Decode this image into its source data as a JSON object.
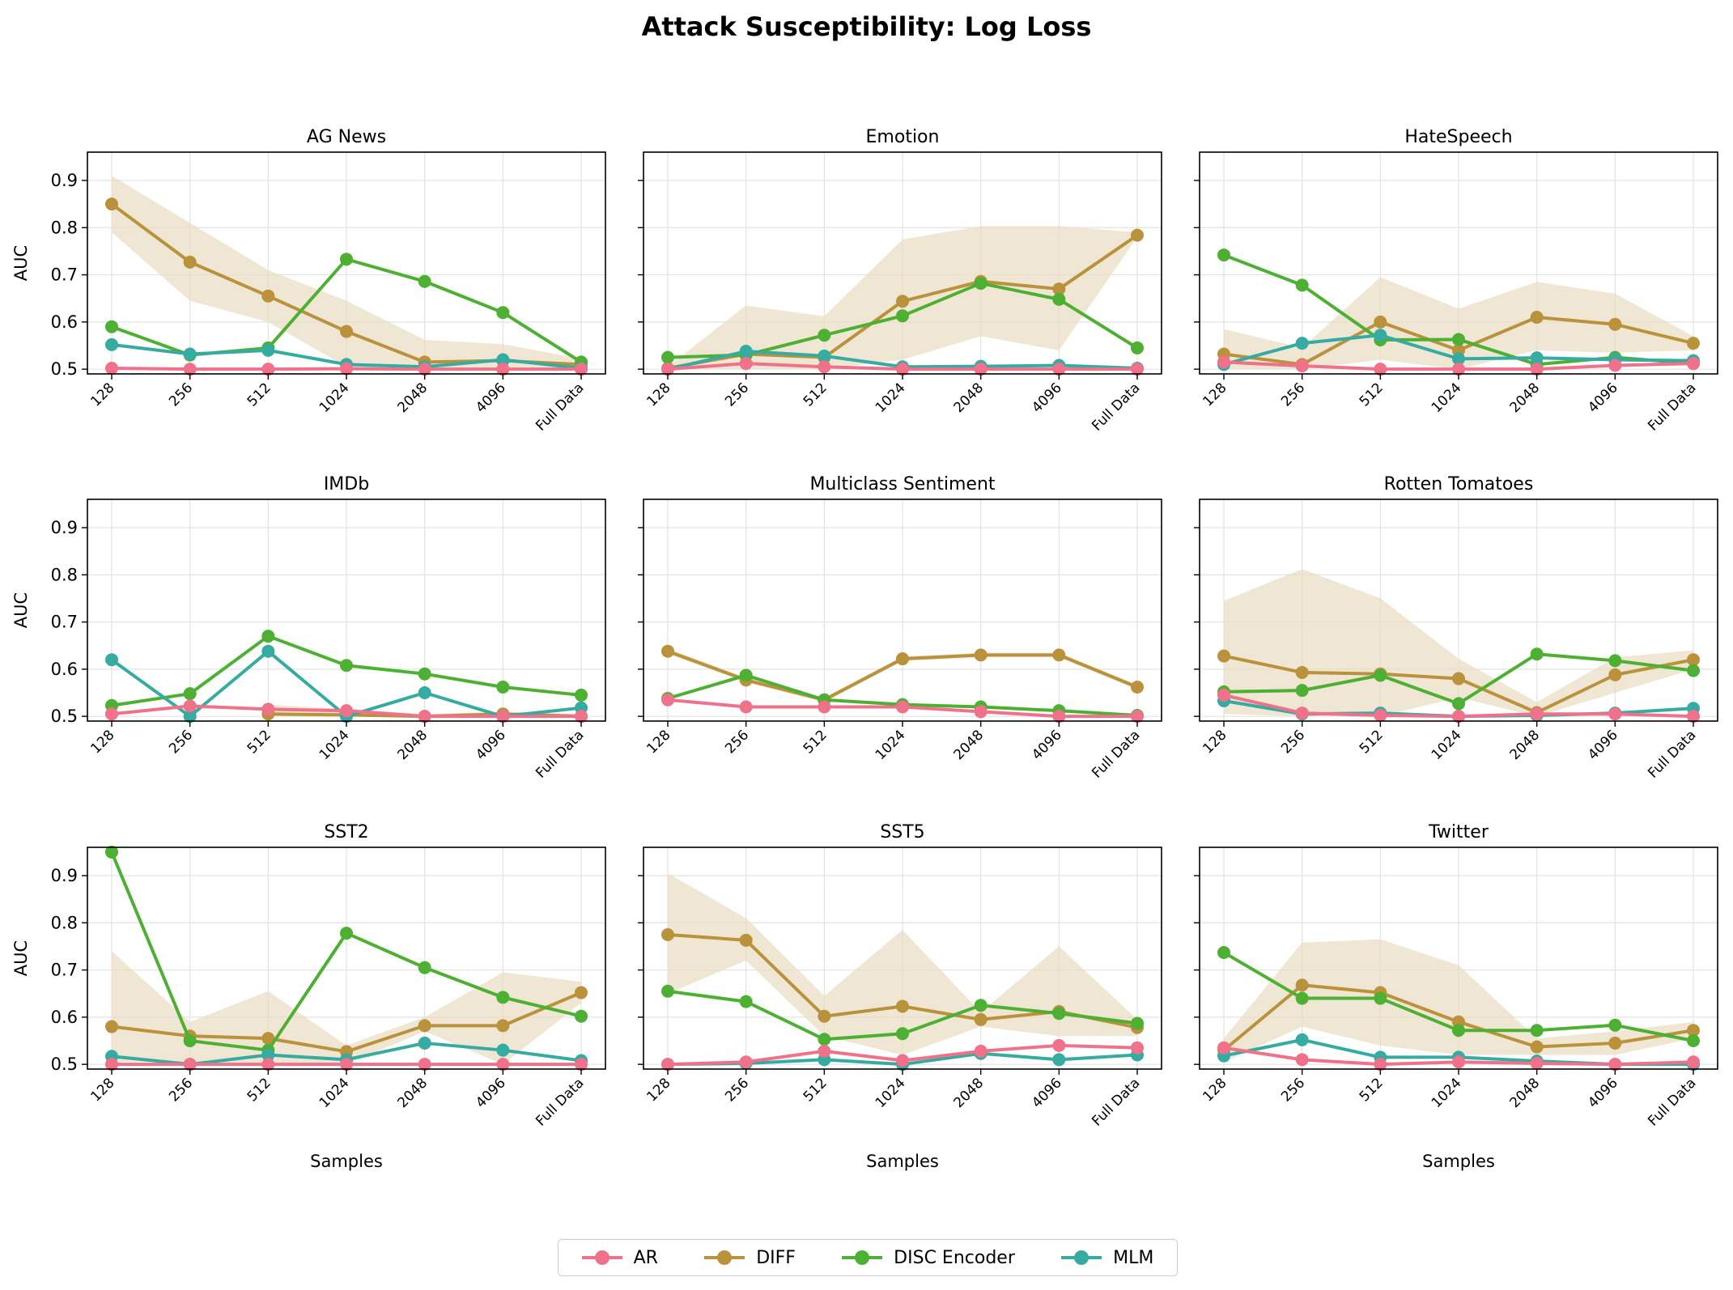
{
  "chart_data": {
    "type": "line",
    "title": "Attack Susceptibility: Log Loss",
    "categories": [
      "128",
      "256",
      "512",
      "1024",
      "2048",
      "4096",
      "Full Data"
    ],
    "xlabel": "Samples",
    "ylabel": "AUC",
    "ylim": [
      0.49,
      0.96
    ],
    "yticks": [
      "0.5",
      "0.6",
      "0.7",
      "0.8",
      "0.9"
    ],
    "grid": true,
    "legend_position": "bottom-center",
    "series_names": [
      "AR",
      "DIFF",
      "DISC Encoder",
      "MLM"
    ],
    "colors": {
      "AR": "#f0718a",
      "DIFF": "#b9923b",
      "DISC Encoder": "#4db032",
      "MLM": "#36aba1",
      "band": "#e8dcc0"
    },
    "panels": [
      {
        "title": "AG News",
        "series": [
          {
            "name": "AR",
            "values": [
              0.502,
              0.5,
              0.5,
              0.501,
              0.5,
              0.5,
              0.5
            ]
          },
          {
            "name": "DIFF",
            "values": [
              0.85,
              0.727,
              0.655,
              0.58,
              0.515,
              0.518,
              0.51
            ],
            "band_low": [
              0.79,
              0.645,
              0.6,
              0.505,
              0.5,
              0.5,
              0.5
            ],
            "band_high": [
              0.91,
              0.81,
              0.71,
              0.645,
              0.562,
              0.553,
              0.522
            ]
          },
          {
            "name": "DISC Encoder",
            "values": [
              0.59,
              0.53,
              0.545,
              0.733,
              0.686,
              0.62,
              0.515
            ]
          },
          {
            "name": "MLM",
            "values": [
              0.552,
              0.532,
              0.54,
              0.51,
              0.505,
              0.52,
              0.502
            ]
          }
        ]
      },
      {
        "title": "Emotion",
        "series": [
          {
            "name": "AR",
            "values": [
              0.5,
              0.512,
              0.505,
              0.5,
              0.5,
              0.5,
              0.5
            ]
          },
          {
            "name": "DIFF",
            "values": [
              0.502,
              0.532,
              0.525,
              0.644,
              0.686,
              0.67,
              0.784
            ],
            "band_low": [
              0.5,
              0.5,
              0.5,
              0.52,
              0.57,
              0.54,
              0.78
            ],
            "band_high": [
              0.505,
              0.635,
              0.612,
              0.775,
              0.803,
              0.803,
              0.79
            ]
          },
          {
            "name": "DISC Encoder",
            "values": [
              0.525,
              0.53,
              0.572,
              0.613,
              0.682,
              0.648,
              0.545
            ]
          },
          {
            "name": "MLM",
            "values": [
              0.5,
              0.538,
              0.528,
              0.505,
              0.506,
              0.508,
              0.502
            ]
          }
        ]
      },
      {
        "title": "HateSpeech",
        "series": [
          {
            "name": "AR",
            "values": [
              0.515,
              0.507,
              0.5,
              0.5,
              0.5,
              0.508,
              0.512
            ]
          },
          {
            "name": "DIFF",
            "values": [
              0.532,
              0.51,
              0.6,
              0.54,
              0.61,
              0.595,
              0.555
            ],
            "band_low": [
              0.5,
              0.5,
              0.52,
              0.5,
              0.54,
              0.535,
              0.54
            ],
            "band_high": [
              0.585,
              0.545,
              0.695,
              0.628,
              0.685,
              0.66,
              0.57
            ]
          },
          {
            "name": "DISC Encoder",
            "values": [
              0.742,
              0.678,
              0.562,
              0.563,
              0.51,
              0.525,
              0.512
            ]
          },
          {
            "name": "MLM",
            "values": [
              0.51,
              0.555,
              0.572,
              0.522,
              0.524,
              0.52,
              0.518
            ]
          }
        ]
      },
      {
        "title": "IMDb",
        "series": [
          {
            "name": "AR",
            "values": [
              0.505,
              0.522,
              0.515,
              0.512,
              0.5,
              0.5,
              0.5
            ]
          },
          {
            "name": "DIFF",
            "values": [
              null,
              null,
              0.505,
              0.503,
              0.5,
              0.505,
              0.5
            ],
            "band_low": [
              null,
              null,
              0.5,
              0.5,
              0.5,
              0.5,
              0.5
            ],
            "band_high": [
              null,
              null,
              0.525,
              0.515,
              0.505,
              0.51,
              0.505
            ]
          },
          {
            "name": "DISC Encoder",
            "values": [
              0.523,
              0.548,
              0.67,
              0.608,
              0.59,
              0.562,
              0.545
            ]
          },
          {
            "name": "MLM",
            "values": [
              0.62,
              0.5,
              0.638,
              0.5,
              0.55,
              0.5,
              0.518
            ]
          }
        ]
      },
      {
        "title": "Multiclass Sentiment",
        "series": [
          {
            "name": "AR",
            "values": [
              0.535,
              0.52,
              0.52,
              0.52,
              0.51,
              0.5,
              0.5
            ]
          },
          {
            "name": "DIFF",
            "values": [
              0.638,
              0.577,
              0.535,
              0.622,
              0.63,
              0.63,
              0.562
            ],
            "band_low": [
              0.632,
              0.572,
              0.53,
              0.617,
              0.625,
              0.625,
              0.557
            ],
            "band_high": [
              0.644,
              0.582,
              0.54,
              0.627,
              0.635,
              0.635,
              0.567
            ]
          },
          {
            "name": "DISC Encoder",
            "values": [
              0.538,
              0.587,
              0.535,
              0.525,
              0.52,
              0.512,
              0.502
            ]
          },
          {
            "name": "MLM",
            "values": [
              null,
              null,
              null,
              null,
              null,
              null,
              null
            ]
          }
        ]
      },
      {
        "title": "Rotten Tomatoes",
        "series": [
          {
            "name": "AR",
            "values": [
              0.545,
              0.507,
              0.502,
              0.5,
              0.505,
              0.505,
              0.5
            ]
          },
          {
            "name": "DIFF",
            "values": [
              0.628,
              0.593,
              0.59,
              0.58,
              0.508,
              0.588,
              0.62
            ],
            "band_low": [
              0.505,
              0.5,
              0.5,
              0.54,
              0.5,
              0.55,
              0.6
            ],
            "band_high": [
              0.745,
              0.812,
              0.75,
              0.622,
              0.53,
              0.625,
              0.64
            ]
          },
          {
            "name": "DISC Encoder",
            "values": [
              0.552,
              0.555,
              0.587,
              0.527,
              0.632,
              0.618,
              0.597
            ]
          },
          {
            "name": "MLM",
            "values": [
              0.533,
              0.505,
              0.507,
              0.5,
              0.502,
              0.507,
              0.517
            ]
          }
        ]
      },
      {
        "title": "SST2",
        "series": [
          {
            "name": "AR",
            "values": [
              0.5,
              0.5,
              0.5,
              0.5,
              0.5,
              0.5,
              0.5
            ]
          },
          {
            "name": "DIFF",
            "values": [
              0.58,
              0.56,
              0.555,
              0.527,
              0.582,
              0.582,
              0.652
            ],
            "band_low": [
              0.505,
              0.505,
              0.5,
              0.5,
              0.57,
              0.5,
              0.63
            ],
            "band_high": [
              0.74,
              0.59,
              0.655,
              0.54,
              0.6,
              0.695,
              0.675
            ]
          },
          {
            "name": "DISC Encoder",
            "values": [
              0.95,
              0.55,
              0.53,
              0.778,
              0.705,
              0.642,
              0.602
            ]
          },
          {
            "name": "MLM",
            "values": [
              0.517,
              0.5,
              0.52,
              0.51,
              0.545,
              0.53,
              0.508
            ]
          }
        ]
      },
      {
        "title": "SST5",
        "series": [
          {
            "name": "AR",
            "values": [
              0.5,
              0.505,
              0.528,
              0.508,
              0.528,
              0.54,
              0.535
            ]
          },
          {
            "name": "DIFF",
            "values": [
              0.775,
              0.763,
              0.602,
              0.623,
              0.595,
              0.612,
              0.578
            ],
            "band_low": [
              0.65,
              0.72,
              0.56,
              0.52,
              0.58,
              0.56,
              0.56
            ],
            "band_high": [
              0.905,
              0.81,
              0.645,
              0.785,
              0.61,
              0.75,
              0.595
            ]
          },
          {
            "name": "DISC Encoder",
            "values": [
              0.655,
              0.633,
              0.553,
              0.565,
              0.625,
              0.608,
              0.587
            ]
          },
          {
            "name": "MLM",
            "values": [
              0.5,
              0.502,
              0.51,
              0.5,
              0.523,
              0.51,
              0.52
            ]
          }
        ]
      },
      {
        "title": "Twitter",
        "series": [
          {
            "name": "AR",
            "values": [
              0.535,
              0.51,
              0.5,
              0.505,
              0.502,
              0.5,
              0.505
            ]
          },
          {
            "name": "DIFF",
            "values": [
              0.53,
              0.668,
              0.652,
              0.59,
              0.537,
              0.545,
              0.572
            ],
            "band_low": [
              0.505,
              0.58,
              0.54,
              0.52,
              0.52,
              0.52,
              0.555
            ],
            "band_high": [
              0.555,
              0.758,
              0.765,
              0.71,
              0.555,
              0.57,
              0.59
            ]
          },
          {
            "name": "DISC Encoder",
            "values": [
              0.737,
              0.64,
              0.64,
              0.572,
              0.572,
              0.583,
              0.55
            ]
          },
          {
            "name": "MLM",
            "values": [
              0.518,
              0.552,
              0.515,
              0.515,
              0.507,
              0.5,
              0.5
            ]
          }
        ]
      }
    ]
  }
}
